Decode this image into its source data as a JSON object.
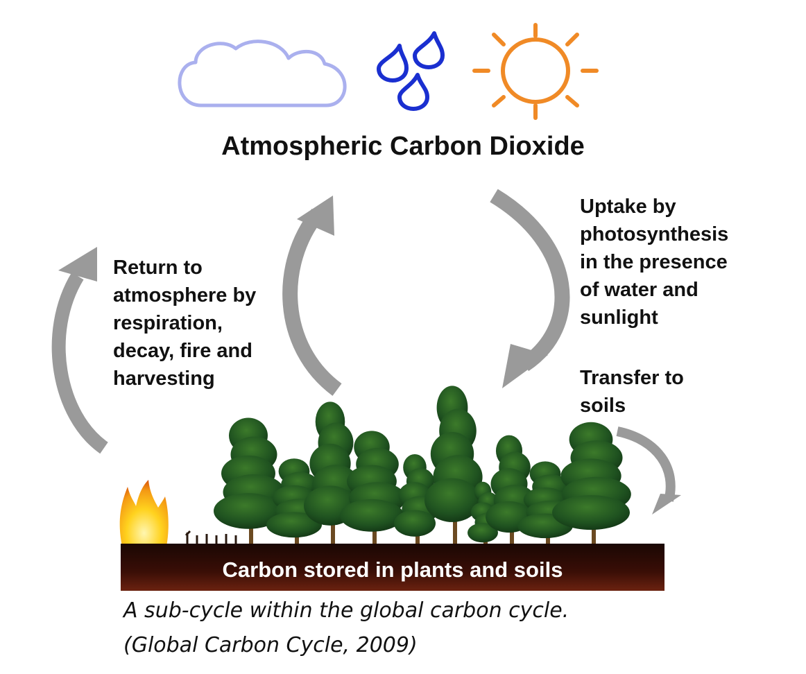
{
  "title": "Atmospheric Carbon Dioxide",
  "labels": {
    "uptake": [
      "Uptake by",
      "photosynthesis",
      "in the presence",
      "of water and",
      "sunlight"
    ],
    "return": [
      "Return to",
      "atmosphere by",
      "respiration,",
      "decay, fire and",
      "harvesting"
    ],
    "transfer": [
      "Transfer to",
      "soils"
    ]
  },
  "ground_label": "Carbon stored in plants and soils",
  "caption": [
    "A sub-cycle within the global carbon cycle.",
    "(Global Carbon Cycle, 2009)"
  ],
  "icons": {
    "cloud": "cloud-icon",
    "water": "water-drop-icon",
    "sun": "sun-icon",
    "fire": "fire-icon",
    "tree": "tree-icon"
  },
  "colors": {
    "cloud": "#aab0ee",
    "water": "#1a2fd0",
    "sun": "#f08a26",
    "arrow": "#9a9a9a",
    "soil": "#3a0e06",
    "foliage": "#1c4f1c",
    "trunk": "#6b4a22"
  }
}
